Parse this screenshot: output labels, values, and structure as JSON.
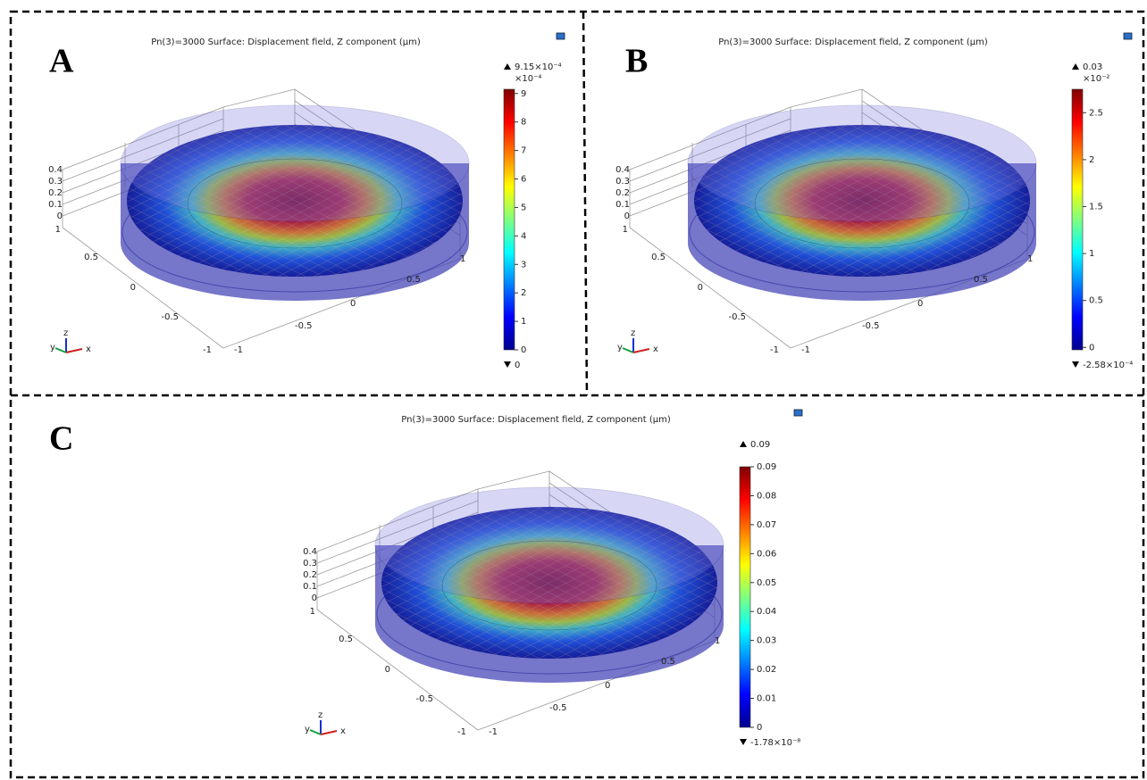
{
  "panels": [
    {
      "label": "A",
      "title": "Pn(3)=3000   Surface: Displacement field, Z component (µm)",
      "max_label": "9.15×10⁻⁴",
      "multiplier": "×10⁻⁴",
      "min_label": "0",
      "colorbar": {
        "range": [
          0,
          9.15
        ],
        "ticks": [
          0,
          1,
          2,
          3,
          4,
          5,
          6,
          7,
          8,
          9
        ]
      },
      "z_ticks": [
        "0.4",
        "0.3",
        "0.2",
        "0.1",
        "0"
      ],
      "y_ticks": [
        "1",
        "0.5",
        "0",
        "-0.5",
        "-1"
      ],
      "x_ticks": [
        "-1",
        "-0.5",
        "0",
        "0.5",
        "1"
      ],
      "triad": [
        "y",
        "z",
        "x"
      ]
    },
    {
      "label": "B",
      "title": "Pn(3)=3000   Surface: Displacement field, Z component (µm)",
      "max_label": "0.03",
      "multiplier": "×10⁻²",
      "min_label": "-2.58×10⁻⁴",
      "colorbar": {
        "range": [
          -0.0258,
          2.75
        ],
        "ticks": [
          0,
          0.5,
          1,
          1.5,
          2,
          2.5
        ]
      },
      "z_ticks": [
        "0.4",
        "0.3",
        "0.2",
        "0.1",
        "0"
      ],
      "y_ticks": [
        "1",
        "0.5",
        "0",
        "-0.5",
        "-1"
      ],
      "x_ticks": [
        "-1",
        "-0.5",
        "0",
        "0.5",
        "1"
      ],
      "triad": [
        "y",
        "z",
        "x"
      ]
    },
    {
      "label": "C",
      "title": "Pn(3)=3000   Surface: Displacement field, Z component (µm)",
      "max_label": "0.09",
      "multiplier": null,
      "min_label": "-1.78×10⁻⁸",
      "colorbar": {
        "range": [
          0,
          0.09
        ],
        "ticks": [
          0,
          0.01,
          0.02,
          0.03,
          0.04,
          0.05,
          0.06,
          0.07,
          0.08,
          0.09
        ]
      },
      "z_ticks": [
        "0.4",
        "0.3",
        "0.2",
        "0.1",
        "0"
      ],
      "y_ticks": [
        "1",
        "0.5",
        "0",
        "-0.5",
        "-1"
      ],
      "x_ticks": [
        "-1",
        "-0.5",
        "0",
        "0.5",
        "1"
      ],
      "triad": [
        "y",
        "z",
        "x"
      ]
    }
  ]
}
